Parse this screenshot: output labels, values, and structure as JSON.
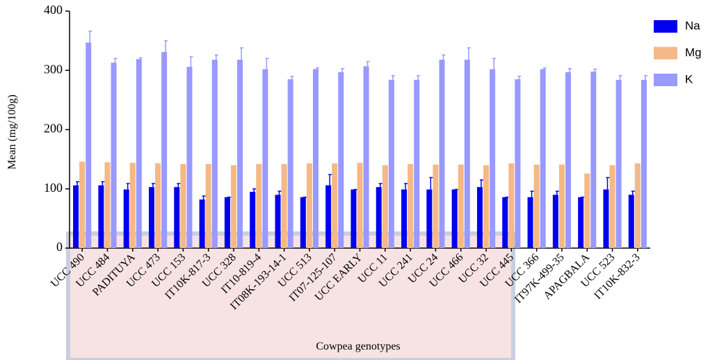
{
  "chart_data": {
    "type": "bar",
    "x_label": "Cowpea genotypes",
    "y_label": "Mean (mg/100g)",
    "categories": [
      "UCC 490",
      "UCC 484",
      "PADITUYA",
      "UCC 473",
      "UCC 153",
      "IT10K-817-3",
      "UCC 328",
      "IT10-819-4",
      "IT08K-193-14-1",
      "UCC 513",
      "IT07-125-107",
      "UCC EARLY",
      "UCC 11",
      "UCC 241",
      "UCC 24",
      "UCC 466",
      "UCC 32",
      "UCC 445",
      "UCC 366",
      "IT97K-499-35",
      "APAGBALA",
      "UCC 523",
      "IT10K-832-3"
    ],
    "series": [
      {
        "name": "Na",
        "color": "#0000ee",
        "values": [
          106,
          106,
          99,
          103,
          103,
          82,
          86,
          95,
          90,
          86,
          106,
          99,
          103,
          99,
          99,
          99,
          103,
          86,
          86,
          90,
          86,
          99,
          90
        ],
        "errors": [
          6,
          6,
          10,
          6,
          6,
          6,
          0,
          5,
          6,
          0,
          18,
          0,
          6,
          10,
          20,
          0,
          12,
          0,
          10,
          6,
          0,
          20,
          6
        ]
      },
      {
        "name": "Mg",
        "color": "#f5b886",
        "values": [
          146,
          145,
          144,
          143,
          142,
          142,
          140,
          142,
          142,
          143,
          143,
          144,
          140,
          142,
          141,
          141,
          140,
          143,
          141,
          141,
          126,
          140,
          143
        ]
      },
      {
        "name": "K",
        "color": "#9999ff",
        "values": [
          347,
          313,
          319,
          331,
          306,
          318,
          318,
          302,
          285,
          302,
          297,
          307,
          284,
          284,
          318,
          318,
          302,
          285,
          302,
          297,
          298,
          284,
          284
        ],
        "errors": [
          19,
          7,
          2,
          19,
          17,
          8,
          20,
          18,
          5,
          2,
          6,
          8,
          7,
          7,
          8,
          20,
          18,
          5,
          2,
          6,
          4,
          7,
          7
        ]
      }
    ],
    "ylim": [
      0,
      400
    ],
    "yticks": [
      0,
      100,
      200,
      300,
      400
    ],
    "grid": false,
    "legend": "right"
  }
}
